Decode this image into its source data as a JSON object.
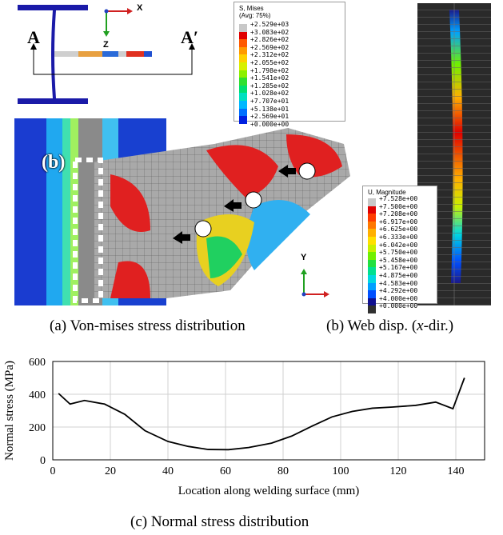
{
  "panel_a": {
    "section_label_left": "A",
    "section_label_right": "A′",
    "axis_x": "X",
    "axis_y": "Y",
    "axis_z": "Z",
    "detail_label": "(b)",
    "legend": {
      "title_line1": "S, Mises",
      "title_line2": "(Avg: 75%)",
      "entries": [
        "+2.529e+03",
        "+3.083e+02",
        "+2.826e+02",
        "+2.569e+02",
        "+2.312e+02",
        "+2.055e+02",
        "+1.798e+02",
        "+1.541e+02",
        "+1.285e+02",
        "+1.028e+02",
        "+7.707e+01",
        "+5.138e+01",
        "+2.569e+01",
        "+0.000e+00"
      ],
      "colors": [
        "#c8c8c8",
        "#e00000",
        "#ff5a00",
        "#ff9a00",
        "#ffd000",
        "#d8f000",
        "#8cf000",
        "#30e030",
        "#00e070",
        "#00e0c0",
        "#00b8ff",
        "#0070ff",
        "#0020e0"
      ]
    },
    "caption": "(a) Von-mises stress distribution"
  },
  "panel_b": {
    "legend": {
      "title": "U, Magnitude",
      "entries": [
        "+7.528e+00",
        "+7.500e+00",
        "+7.208e+00",
        "+6.917e+00",
        "+6.625e+00",
        "+6.333e+00",
        "+6.042e+00",
        "+5.750e+00",
        "+5.458e+00",
        "+5.167e+00",
        "+4.875e+00",
        "+4.583e+00",
        "+4.292e+00",
        "+4.000e+00",
        "+0.000e+00"
      ],
      "colors": [
        "#c8c8c8",
        "#e00000",
        "#ff3c00",
        "#ff7800",
        "#ffb000",
        "#ffe000",
        "#c8f000",
        "#70f000",
        "#20e040",
        "#00e090",
        "#00d8e0",
        "#00a0ff",
        "#0050ff",
        "#101090",
        "#303030"
      ]
    },
    "caption_prefix": "(b) Web disp. (",
    "caption_var": "x",
    "caption_suffix": "-dir.)"
  },
  "chart_data": {
    "type": "line",
    "title": "(c) Normal stress distribution",
    "xlabel": "Location along welding surface (mm)",
    "ylabel": "Normal stress (MPa)",
    "xlim": [
      0,
      150
    ],
    "ylim": [
      0,
      600
    ],
    "xticks": [
      0,
      20,
      40,
      60,
      80,
      100,
      120,
      140
    ],
    "yticks": [
      0,
      200,
      400,
      600
    ],
    "x": [
      2,
      6,
      11,
      18,
      25,
      32,
      40,
      47,
      54,
      61,
      68,
      76,
      83,
      90,
      97,
      104,
      111,
      118,
      126,
      133,
      139,
      143
    ],
    "values": [
      405,
      340,
      362,
      340,
      278,
      178,
      112,
      82,
      63,
      62,
      75,
      102,
      145,
      205,
      262,
      295,
      315,
      322,
      332,
      352,
      312,
      500
    ]
  }
}
